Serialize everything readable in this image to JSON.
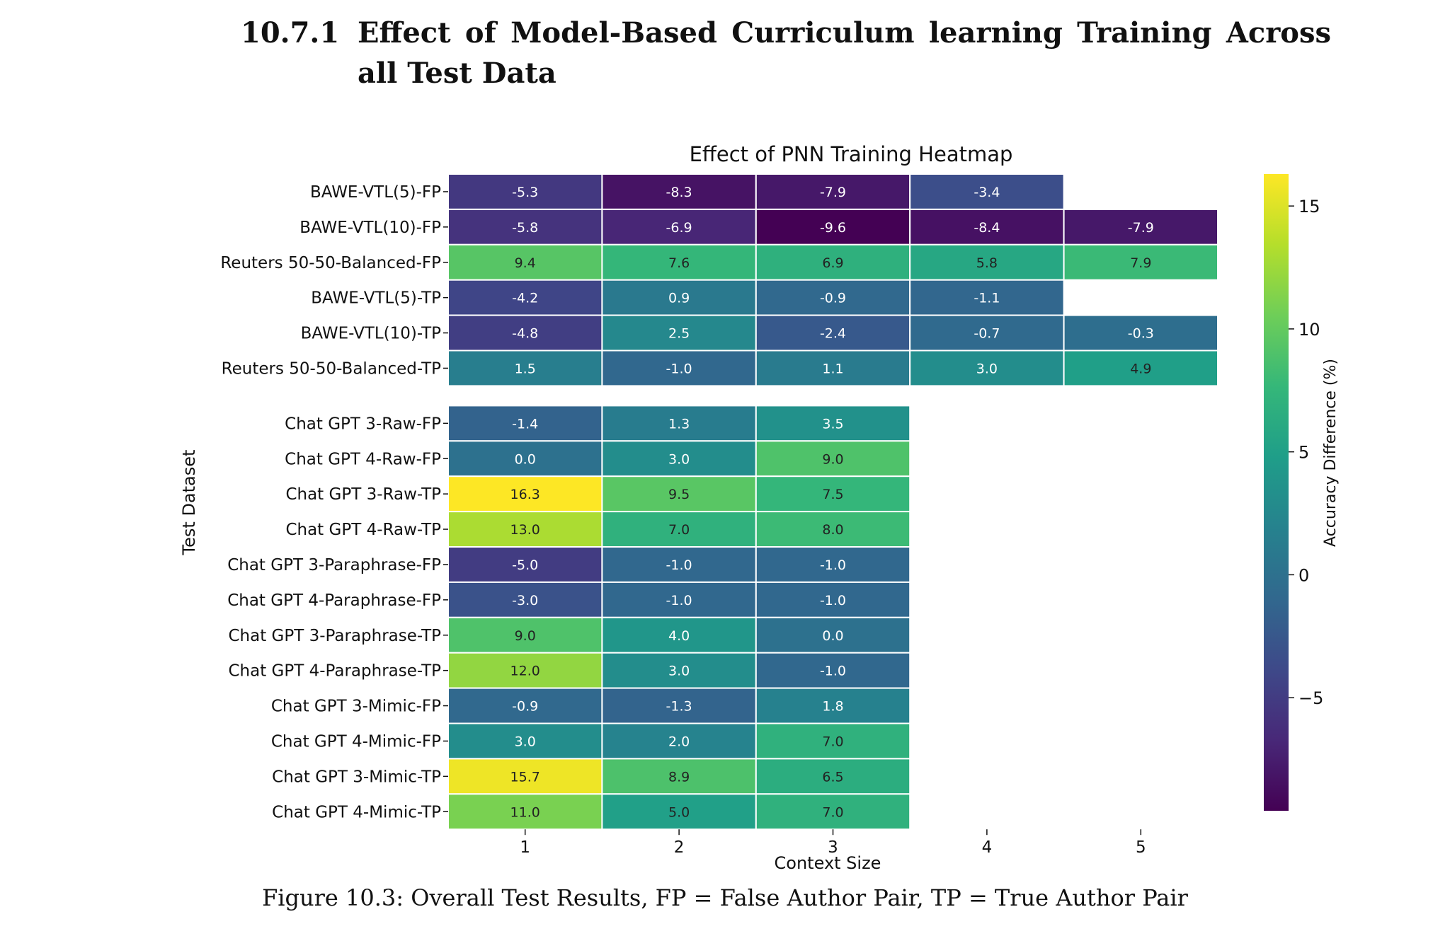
{
  "section": {
    "number": "10.7.1",
    "title": "Effect of Model-Based Curriculum learning Training Across all Test Data"
  },
  "chart_data": {
    "type": "heatmap",
    "title": "Effect of PNN Training Heatmap",
    "xlabel": "Context Size",
    "ylabel": "Test Dataset",
    "x": [
      1,
      2,
      3,
      4,
      5
    ],
    "colorbar": {
      "label": "Accuracy Difference (%)",
      "range": [
        -9.6,
        16.3
      ],
      "ticks": [
        15,
        10,
        5,
        0,
        -5
      ],
      "tick_labels": [
        "15",
        "10",
        "5",
        "0",
        "−5"
      ],
      "colormap": "viridis"
    },
    "group_gap_after_row": 6,
    "rows": [
      {
        "label": "BAWE-VTL(5)-FP",
        "values": [
          -5.3,
          -8.3,
          -7.9,
          -3.4,
          null
        ]
      },
      {
        "label": "BAWE-VTL(10)-FP",
        "values": [
          -5.8,
          -6.9,
          -9.6,
          -8.4,
          -7.9
        ]
      },
      {
        "label": "Reuters 50-50-Balanced-FP",
        "values": [
          9.4,
          7.6,
          6.9,
          5.8,
          7.9
        ]
      },
      {
        "label": "BAWE-VTL(5)-TP",
        "values": [
          -4.2,
          0.9,
          -0.9,
          -1.1,
          null
        ]
      },
      {
        "label": "BAWE-VTL(10)-TP",
        "values": [
          -4.8,
          2.5,
          -2.4,
          -0.7,
          -0.3
        ]
      },
      {
        "label": "Reuters 50-50-Balanced-TP",
        "values": [
          1.5,
          -1.0,
          1.1,
          3.0,
          4.9
        ]
      },
      {
        "label": "Chat GPT 3-Raw-FP",
        "values": [
          -1.4,
          1.3,
          3.5,
          null,
          null
        ]
      },
      {
        "label": "Chat GPT 4-Raw-FP",
        "values": [
          0.0,
          3.0,
          9.0,
          null,
          null
        ]
      },
      {
        "label": "Chat GPT 3-Raw-TP",
        "values": [
          16.3,
          9.5,
          7.5,
          null,
          null
        ]
      },
      {
        "label": "Chat GPT 4-Raw-TP",
        "values": [
          13.0,
          7.0,
          8.0,
          null,
          null
        ]
      },
      {
        "label": "Chat GPT 3-Paraphrase-FP",
        "values": [
          -5.0,
          -1.0,
          -1.0,
          null,
          null
        ]
      },
      {
        "label": "Chat GPT 4-Paraphrase-FP",
        "values": [
          -3.0,
          -1.0,
          -1.0,
          null,
          null
        ]
      },
      {
        "label": "Chat GPT 3-Paraphrase-TP",
        "values": [
          9.0,
          4.0,
          0.0,
          null,
          null
        ]
      },
      {
        "label": "Chat GPT 4-Paraphrase-TP",
        "values": [
          12.0,
          3.0,
          -1.0,
          null,
          null
        ]
      },
      {
        "label": "Chat GPT 3-Mimic-FP",
        "values": [
          -0.9,
          -1.3,
          1.8,
          null,
          null
        ]
      },
      {
        "label": "Chat GPT 4-Mimic-FP",
        "values": [
          3.0,
          2.0,
          7.0,
          null,
          null
        ]
      },
      {
        "label": "Chat GPT 3-Mimic-TP",
        "values": [
          15.7,
          8.9,
          6.5,
          null,
          null
        ]
      },
      {
        "label": "Chat GPT 4-Mimic-TP",
        "values": [
          11.0,
          5.0,
          7.0,
          null,
          null
        ]
      }
    ]
  },
  "caption": "Figure 10.3: Overall Test Results, FP = False Author Pair, TP = True Author Pair"
}
